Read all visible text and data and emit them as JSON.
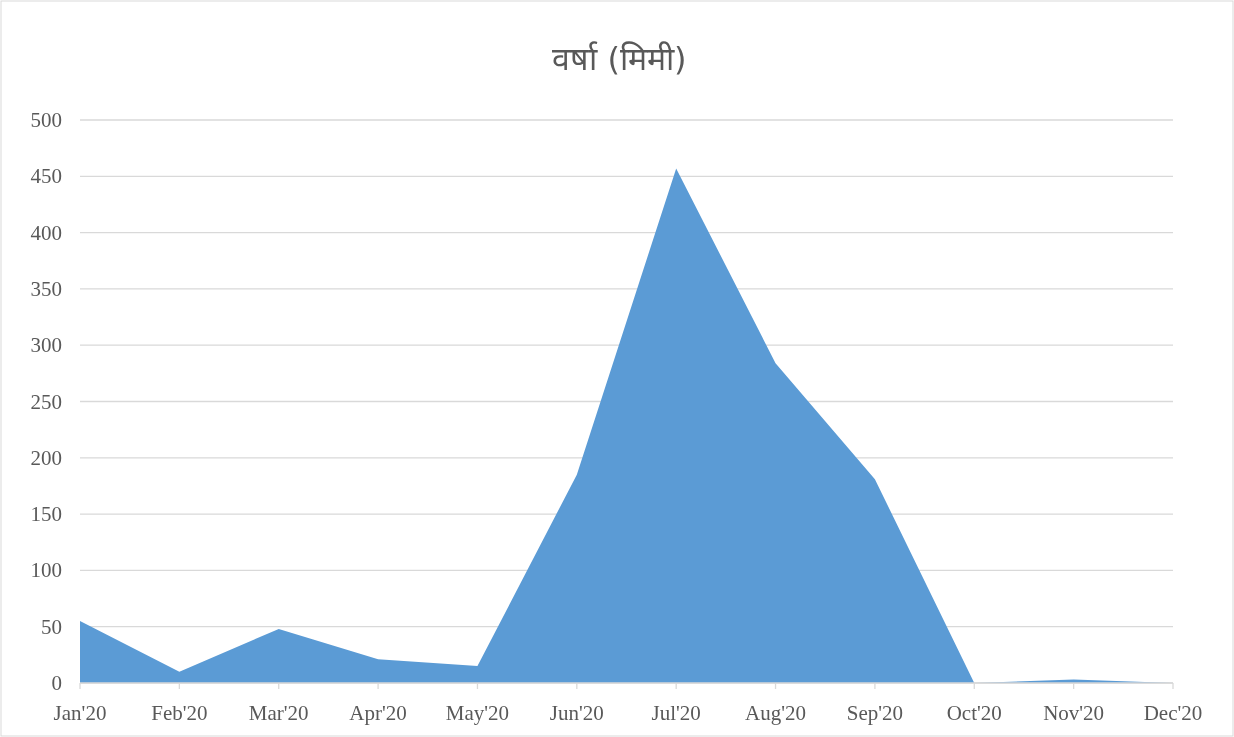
{
  "chart_data": {
    "type": "area",
    "title": "वर्षा (मिमी)",
    "categories": [
      "Jan'20",
      "Feb'20",
      "Mar'20",
      "Apr'20",
      "May'20",
      "Jun'20",
      "Jul'20",
      "Aug'20",
      "Sep'20",
      "Oct'20",
      "Nov'20",
      "Dec'20"
    ],
    "values": [
      55,
      10,
      48,
      21,
      15,
      185,
      457,
      284,
      181,
      0,
      3,
      0
    ],
    "color": "#5b9bd5",
    "ylim": [
      0,
      500
    ],
    "yticks": [
      0,
      50,
      100,
      150,
      200,
      250,
      300,
      350,
      400,
      450,
      500
    ],
    "grid": "y"
  }
}
